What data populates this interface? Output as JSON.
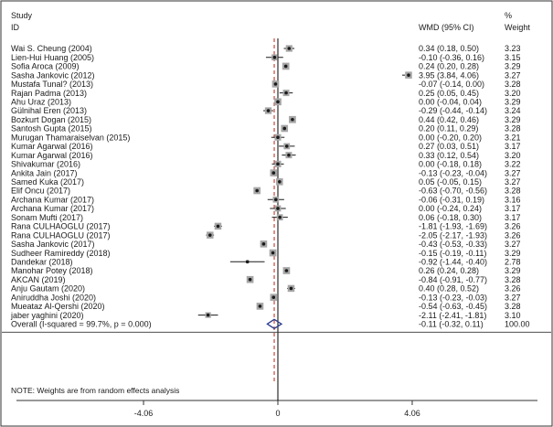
{
  "chart_data": {
    "type": "forest",
    "headers": {
      "study_line1": "Study",
      "study_line2": "ID",
      "effect": "WMD (95% CI)",
      "weight_line1": "%",
      "weight_line2": "Weight"
    },
    "studies": [
      {
        "label": "Wai S. Cheung (2004)",
        "est": 0.34,
        "lo": 0.18,
        "hi": 0.5,
        "ci_text": "0.34 (0.18, 0.50)",
        "weight": "3.23"
      },
      {
        "label": "Lien-Hui Huang (2005)",
        "est": -0.1,
        "lo": -0.36,
        "hi": 0.16,
        "ci_text": "-0.10 (-0.36, 0.16)",
        "weight": "3.15"
      },
      {
        "label": "Sofia Aroca (2009)",
        "est": 0.24,
        "lo": 0.2,
        "hi": 0.28,
        "ci_text": "0.24 (0.20, 0.28)",
        "weight": "3.29"
      },
      {
        "label": "Sasha Jankovic (2012)",
        "est": 3.95,
        "lo": 3.84,
        "hi": 4.06,
        "ci_text": "3.95 (3.84, 4.06)",
        "weight": "3.27"
      },
      {
        "label": "Mustafa Tunal? (2013)",
        "est": -0.07,
        "lo": -0.14,
        "hi": 0.0,
        "ci_text": "-0.07 (-0.14, 0.00)",
        "weight": "3.28"
      },
      {
        "label": "Rajan Padma (2013)",
        "est": 0.25,
        "lo": 0.05,
        "hi": 0.45,
        "ci_text": "0.25 (0.05, 0.45)",
        "weight": "3.20"
      },
      {
        "label": "Ahu Uraz (2013)",
        "est": 0.0,
        "lo": -0.04,
        "hi": 0.04,
        "ci_text": "0.00 (-0.04, 0.04)",
        "weight": "3.29"
      },
      {
        "label": "Gülnihal Eren (2013)",
        "est": -0.29,
        "lo": -0.44,
        "hi": -0.14,
        "ci_text": "-0.29 (-0.44, -0.14)",
        "weight": "3.24"
      },
      {
        "label": "Bozkurt Dogan (2015)",
        "est": 0.44,
        "lo": 0.42,
        "hi": 0.46,
        "ci_text": "0.44 (0.42, 0.46)",
        "weight": "3.29"
      },
      {
        "label": "Santosh Gupta (2015)",
        "est": 0.2,
        "lo": 0.11,
        "hi": 0.29,
        "ci_text": "0.20 (0.11, 0.29)",
        "weight": "3.28"
      },
      {
        "label": "Murugan Thamaraiselvan (2015)",
        "est": 0.0,
        "lo": -0.2,
        "hi": 0.2,
        "ci_text": "0.00 (-0.20, 0.20)",
        "weight": "3.21"
      },
      {
        "label": "Kumar Agarwal (2016)",
        "est": 0.27,
        "lo": 0.03,
        "hi": 0.51,
        "ci_text": "0.27 (0.03, 0.51)",
        "weight": "3.17"
      },
      {
        "label": "Kumar Agarwal (2016)",
        "est": 0.33,
        "lo": 0.12,
        "hi": 0.54,
        "ci_text": "0.33 (0.12, 0.54)",
        "weight": "3.20"
      },
      {
        "label": "Shivakumar (2016)",
        "est": 0.0,
        "lo": -0.18,
        "hi": 0.18,
        "ci_text": "0.00 (-0.18, 0.18)",
        "weight": "3.22"
      },
      {
        "label": "Ankita Jain (2017)",
        "est": -0.13,
        "lo": -0.23,
        "hi": -0.04,
        "ci_text": "-0.13 (-0.23, -0.04)",
        "weight": "3.27"
      },
      {
        "label": "Samed Kuka (2017)",
        "est": 0.05,
        "lo": -0.05,
        "hi": 0.15,
        "ci_text": "0.05 (-0.05, 0.15)",
        "weight": "3.27"
      },
      {
        "label": "Elif Oncu (2017)",
        "est": -0.63,
        "lo": -0.7,
        "hi": -0.56,
        "ci_text": "-0.63 (-0.70, -0.56)",
        "weight": "3.28"
      },
      {
        "label": "Archana Kumar (2017)",
        "est": -0.06,
        "lo": -0.31,
        "hi": 0.19,
        "ci_text": "-0.06 (-0.31, 0.19)",
        "weight": "3.16"
      },
      {
        "label": "Archana Kumar (2017)",
        "est": 0.0,
        "lo": -0.24,
        "hi": 0.24,
        "ci_text": "0.00 (-0.24, 0.24)",
        "weight": "3.17"
      },
      {
        "label": "Sonam Mufti (2017)",
        "est": 0.06,
        "lo": -0.18,
        "hi": 0.3,
        "ci_text": "0.06 (-0.18, 0.30)",
        "weight": "3.17"
      },
      {
        "label": "Rana CULHAOGLU (2017)",
        "est": -1.81,
        "lo": -1.93,
        "hi": -1.69,
        "ci_text": "-1.81 (-1.93, -1.69)",
        "weight": "3.26"
      },
      {
        "label": "Rana CULHAOGLU (2017)",
        "est": -2.05,
        "lo": -2.17,
        "hi": -1.93,
        "ci_text": "-2.05 (-2.17, -1.93)",
        "weight": "3.26"
      },
      {
        "label": "Sasha Jankovic (2017)",
        "est": -0.43,
        "lo": -0.53,
        "hi": -0.33,
        "ci_text": "-0.43 (-0.53, -0.33)",
        "weight": "3.27"
      },
      {
        "label": "Sudheer Ramireddy (2018)",
        "est": -0.15,
        "lo": -0.19,
        "hi": -0.11,
        "ci_text": "-0.15 (-0.19, -0.11)",
        "weight": "3.29"
      },
      {
        "label": "Dandekar (2018)",
        "est": -0.92,
        "lo": -1.44,
        "hi": -0.4,
        "ci_text": "-0.92 (-1.44, -0.40)",
        "weight": "2.78"
      },
      {
        "label": "Manohar Potey (2018)",
        "est": 0.26,
        "lo": 0.24,
        "hi": 0.28,
        "ci_text": "0.26 (0.24, 0.28)",
        "weight": "3.29"
      },
      {
        "label": "AKCAN (2019)",
        "est": -0.84,
        "lo": -0.91,
        "hi": -0.77,
        "ci_text": "-0.84 (-0.91, -0.77)",
        "weight": "3.28"
      },
      {
        "label": "Anju Gautam (2020)",
        "est": 0.4,
        "lo": 0.28,
        "hi": 0.52,
        "ci_text": "0.40 (0.28, 0.52)",
        "weight": "3.26"
      },
      {
        "label": "Aniruddha Joshi (2020)",
        "est": -0.13,
        "lo": -0.23,
        "hi": -0.03,
        "ci_text": "-0.13 (-0.23, -0.03)",
        "weight": "3.27"
      },
      {
        "label": "Mueataz Al-Qershi (2020)",
        "est": -0.54,
        "lo": -0.63,
        "hi": -0.45,
        "ci_text": "-0.54 (-0.63, -0.45)",
        "weight": "3.28"
      },
      {
        "label": "jaber yaghini (2020)",
        "est": -2.11,
        "lo": -2.41,
        "hi": -1.81,
        "ci_text": "-2.11 (-2.41, -1.81)",
        "weight": "3.10"
      }
    ],
    "overall": {
      "label": "Overall  (I-squared = 99.7%, p = 0.000)",
      "est": -0.11,
      "lo": -0.32,
      "hi": 0.11,
      "ci_text": "-0.11 (-0.32, 0.11)",
      "weight": "100.00"
    },
    "note": "NOTE: Weights are from random effects analysis",
    "x_axis": {
      "range": [
        -4.06,
        4.06
      ],
      "ticks": [
        -4.06,
        0,
        4.06
      ],
      "tick_labels": [
        "-4.06",
        "0",
        "4.06"
      ]
    },
    "colors": {
      "null_line": "#000000",
      "overall_line": "#c0392b",
      "marker": "#1a1a1a",
      "box": "#a6a6a6",
      "diamond": "#2c3e8f"
    }
  }
}
